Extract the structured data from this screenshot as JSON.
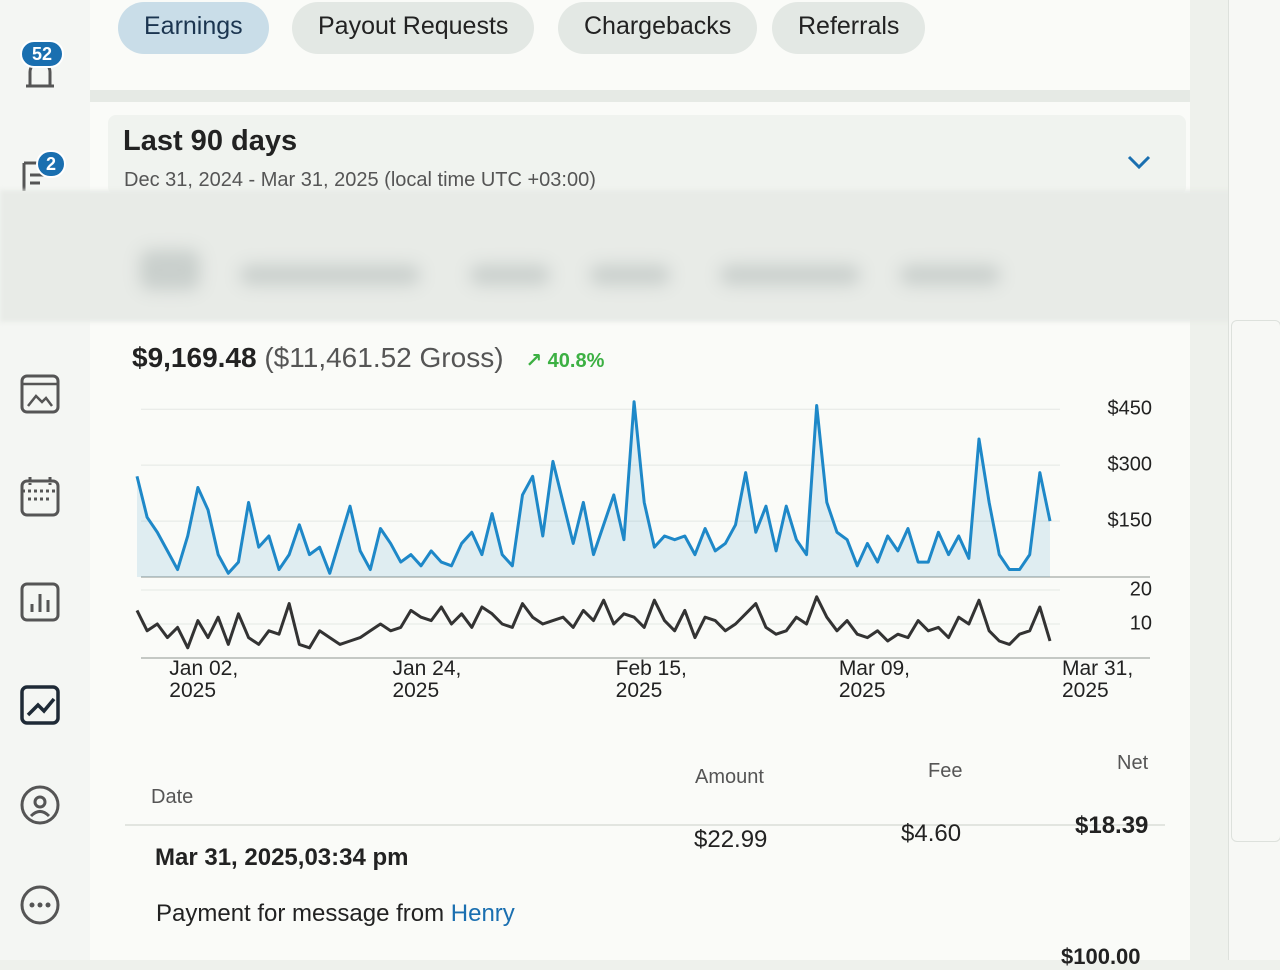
{
  "sidebar": {
    "notifications_badge": "52",
    "messages_badge": "2"
  },
  "tabs": [
    "Earnings",
    "Payout Requests",
    "Chargebacks",
    "Referrals"
  ],
  "period": {
    "title": "Last 90 days",
    "range": "Dec 31, 2024 - Mar 31, 2025 (local time UTC +03:00)"
  },
  "summary": {
    "net": "$9,169.48",
    "gross": "($11,461.52 Gross)",
    "growth": "40.8%"
  },
  "chart_data": {
    "type": "line",
    "categories": [
      null,
      null,
      "Jan 02, 2025",
      null,
      null,
      null,
      null,
      null,
      null,
      null,
      null,
      null,
      null,
      null,
      null,
      null,
      null,
      null,
      null,
      null,
      null,
      null,
      null,
      null,
      "Jan 24, 2025",
      null,
      null,
      null,
      null,
      null,
      null,
      null,
      null,
      null,
      null,
      null,
      null,
      null,
      null,
      null,
      null,
      null,
      null,
      null,
      null,
      null,
      "Feb 15, 2025",
      null,
      null,
      null,
      null,
      null,
      null,
      null,
      null,
      null,
      null,
      null,
      null,
      null,
      null,
      null,
      null,
      null,
      null,
      null,
      null,
      null,
      "Mar 09, 2025",
      null,
      null,
      null,
      null,
      null,
      null,
      null,
      null,
      null,
      null,
      null,
      null,
      null,
      null,
      null,
      null,
      null,
      null,
      null,
      null,
      null,
      "Mar 31, 2025"
    ],
    "series": [
      {
        "color": "#1e88c8",
        "values": [
          270,
          160,
          120,
          70,
          20,
          110,
          240,
          180,
          60,
          10,
          40,
          200,
          80,
          110,
          20,
          60,
          140,
          60,
          80,
          10,
          100,
          190,
          70,
          20,
          130,
          90,
          40,
          60,
          30,
          70,
          40,
          30,
          90,
          120,
          60,
          170,
          60,
          30,
          220,
          270,
          110,
          310,
          200,
          90,
          200,
          60,
          140,
          220,
          100,
          470,
          200,
          80,
          110,
          100,
          110,
          60,
          130,
          70,
          90,
          140,
          280,
          120,
          190,
          70,
          190,
          100,
          60,
          460,
          200,
          120,
          100,
          30,
          90,
          40,
          110,
          70,
          130,
          40,
          40,
          120,
          60,
          110,
          50,
          370,
          200,
          60,
          20,
          20,
          60,
          280,
          150
        ]
      },
      {
        "color": "#333333",
        "axis": "y2",
        "values": [
          14,
          8,
          10,
          6,
          9,
          3,
          11,
          6,
          12,
          4,
          13,
          6,
          4,
          8,
          7,
          16,
          4,
          3,
          8,
          6,
          4,
          5,
          6,
          8,
          10,
          8,
          9,
          14,
          12,
          11,
          15,
          10,
          13,
          9,
          15,
          13,
          10,
          9,
          16,
          12,
          10,
          11,
          12,
          9,
          14,
          11,
          17,
          10,
          13,
          12,
          9,
          17,
          11,
          8,
          14,
          6,
          12,
          11,
          8,
          10,
          13,
          16,
          9,
          7,
          8,
          12,
          10,
          18,
          12,
          8,
          11,
          7,
          6,
          8,
          5,
          7,
          6,
          11,
          8,
          9,
          6,
          12,
          10,
          17,
          8,
          5,
          4,
          7,
          8,
          15,
          5
        ]
      }
    ],
    "ylim": [
      0,
      480
    ],
    "yticks": [
      {
        "value": 150,
        "label": "$150"
      },
      {
        "value": 300,
        "label": "$300"
      },
      {
        "value": 450,
        "label": "$450"
      }
    ],
    "y2lim": [
      0,
      25
    ],
    "y2ticks": [
      10,
      20
    ]
  },
  "table": {
    "headers": [
      "Date",
      "Amount",
      "Fee",
      "Net"
    ],
    "rows": [
      {
        "date": "Mar 31, 2025,03:34 pm",
        "amount": "$22.99",
        "fee": "$4.60",
        "net": "$18.39",
        "description": "Payment for message from",
        "sender": "Henry"
      },
      {
        "net": "$100.00"
      }
    ]
  }
}
